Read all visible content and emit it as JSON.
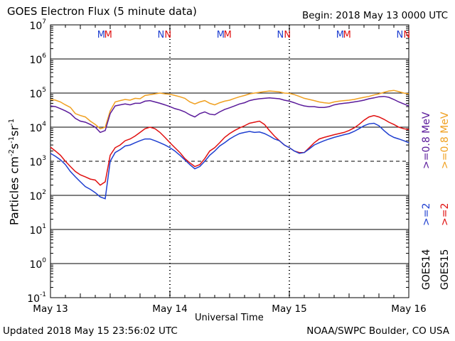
{
  "header": {
    "title": "GOES Electron Flux (5 minute data)",
    "begin": "Begin: 2018 May 13 0000 UTC"
  },
  "footer": {
    "updated": "Updated 2018 May 15 23:56:02 UTC",
    "credit": "NOAA/SWPC Boulder, CO USA"
  },
  "colors": {
    "goes14_2mev": "#1f3fd0",
    "goes15_2mev": "#e01010",
    "goes14_08mev": "#5a1a9a",
    "goes15_08mev": "#f0a020",
    "midnight_M": [
      "#1f3fd0",
      "#e01010"
    ],
    "noon_N": [
      "#1f3fd0",
      "#e01010"
    ]
  },
  "chart_data": {
    "type": "line",
    "title": "GOES Electron Flux (5 minute data)",
    "xlabel": "Universal Time",
    "ylabel_base": "Particles cm",
    "ylabel_exp1": "-2",
    "ylabel_mid1": "s",
    "ylabel_exp2": "-1",
    "ylabel_mid2": "sr",
    "ylabel_exp3": "-1",
    "yscale": "log",
    "ylim": [
      0.1,
      10000000
    ],
    "xlim": [
      0,
      72
    ],
    "x_unit": "hours since 2018 May 13 0000 UTC",
    "x_ticks": [
      {
        "x": 0,
        "label": "May 13"
      },
      {
        "x": 24,
        "label": "May 14"
      },
      {
        "x": 48,
        "label": "May 15"
      },
      {
        "x": 72,
        "label": "May 16"
      }
    ],
    "y_ticks": [
      {
        "value": 0.1,
        "base": "10",
        "exp": "-1"
      },
      {
        "value": 1,
        "base": "10",
        "exp": "0"
      },
      {
        "value": 10,
        "base": "10",
        "exp": "1"
      },
      {
        "value": 100,
        "base": "10",
        "exp": "2"
      },
      {
        "value": 1000,
        "base": "10",
        "exp": "3"
      },
      {
        "value": 10000,
        "base": "10",
        "exp": "4"
      },
      {
        "value": 100000,
        "base": "10",
        "exp": "5"
      },
      {
        "value": 1000000,
        "base": "10",
        "exp": "6"
      },
      {
        "value": 10000000,
        "base": "10",
        "exp": "7"
      }
    ],
    "threshold_line": 1000,
    "midnight_markers": [
      {
        "x": 10.2,
        "label": "M",
        "color": "#1f3fd0"
      },
      {
        "x": 11.6,
        "label": "M",
        "color": "#e01010"
      },
      {
        "x": 34.2,
        "label": "M",
        "color": "#1f3fd0"
      },
      {
        "x": 35.6,
        "label": "M",
        "color": "#e01010"
      },
      {
        "x": 58.2,
        "label": "M",
        "color": "#1f3fd0"
      },
      {
        "x": 59.6,
        "label": "M",
        "color": "#e01010"
      }
    ],
    "noon_markers": [
      {
        "x": 22.2,
        "label": "N",
        "color": "#1f3fd0"
      },
      {
        "x": 23.6,
        "label": "N",
        "color": "#e01010"
      },
      {
        "x": 46.2,
        "label": "N",
        "color": "#1f3fd0"
      },
      {
        "x": 47.6,
        "label": "N",
        "color": "#e01010"
      },
      {
        "x": 70.2,
        "label": "N",
        "color": "#1f3fd0"
      },
      {
        "x": 71.6,
        "label": "N",
        "color": "#e01010"
      }
    ],
    "legend": {
      "placement": "right",
      "groups": [
        {
          "label": "GOES14",
          "items": [
            {
              "label": ">=2",
              "color": "#1f3fd0"
            },
            {
              "label": ">=0.8 MeV",
              "color": "#5a1a9a"
            }
          ]
        },
        {
          "label": "GOES15",
          "items": [
            {
              "label": ">=2",
              "color": "#e01010"
            },
            {
              "label": ">=0.8 MeV",
              "color": "#f0a020"
            }
          ]
        }
      ]
    },
    "series": [
      {
        "name": "GOES15 >=0.8 MeV",
        "color": "#f0a020",
        "x": [
          0,
          1,
          2,
          3,
          4,
          5,
          6,
          7,
          8,
          9,
          10,
          11,
          12,
          13,
          14,
          15,
          16,
          17,
          18,
          19,
          20,
          21,
          22,
          23,
          24,
          25,
          26,
          27,
          28,
          29,
          30,
          31,
          32,
          33,
          34,
          35,
          36,
          37,
          38,
          39,
          40,
          41,
          42,
          43,
          44,
          45,
          46,
          47,
          48,
          49,
          50,
          51,
          52,
          53,
          54,
          55,
          56,
          57,
          58,
          59,
          60,
          61,
          62,
          63,
          64,
          65,
          66,
          67,
          68,
          69,
          70,
          71,
          72
        ],
        "values": [
          65000,
          62000,
          55000,
          45000,
          38000,
          25000,
          22000,
          20000,
          15000,
          12000,
          9000,
          10000,
          30000,
          55000,
          60000,
          65000,
          62000,
          70000,
          68000,
          85000,
          90000,
          95000,
          100000,
          95000,
          92000,
          85000,
          78000,
          70000,
          55000,
          48000,
          55000,
          60000,
          50000,
          45000,
          52000,
          58000,
          62000,
          70000,
          78000,
          85000,
          95000,
          100000,
          105000,
          110000,
          115000,
          112000,
          108000,
          100000,
          98000,
          90000,
          80000,
          70000,
          65000,
          60000,
          55000,
          52000,
          50000,
          55000,
          58000,
          60000,
          62000,
          65000,
          70000,
          75000,
          80000,
          88000,
          95000,
          105000,
          115000,
          120000,
          110000,
          100000,
          95000
        ]
      },
      {
        "name": "GOES14 >=0.8 MeV",
        "color": "#5a1a9a",
        "x": [
          0,
          1,
          2,
          3,
          4,
          5,
          6,
          7,
          8,
          9,
          10,
          11,
          12,
          13,
          14,
          15,
          16,
          17,
          18,
          19,
          20,
          21,
          22,
          23,
          24,
          25,
          26,
          27,
          28,
          29,
          30,
          31,
          32,
          33,
          34,
          35,
          36,
          37,
          38,
          39,
          40,
          41,
          42,
          43,
          44,
          45,
          46,
          47,
          48,
          49,
          50,
          51,
          52,
          53,
          54,
          55,
          56,
          57,
          58,
          59,
          60,
          61,
          62,
          63,
          64,
          65,
          66,
          67,
          68,
          69,
          70,
          71,
          72
        ],
        "values": [
          42000,
          40000,
          35000,
          30000,
          25000,
          18000,
          15000,
          14000,
          12000,
          10000,
          7000,
          8000,
          25000,
          42000,
          45000,
          48000,
          45000,
          50000,
          50000,
          58000,
          60000,
          55000,
          50000,
          45000,
          40000,
          35000,
          32000,
          28000,
          23000,
          20000,
          25000,
          28000,
          24000,
          23000,
          28000,
          33000,
          37000,
          42000,
          48000,
          52000,
          60000,
          65000,
          68000,
          70000,
          72000,
          70000,
          68000,
          62000,
          58000,
          52000,
          46000,
          42000,
          40000,
          40000,
          38000,
          38000,
          40000,
          45000,
          48000,
          50000,
          52000,
          55000,
          58000,
          62000,
          68000,
          72000,
          78000,
          80000,
          75000,
          65000,
          55000,
          48000,
          42000
        ]
      },
      {
        "name": "GOES15 >=2 MeV",
        "color": "#e01010",
        "x": [
          0,
          1,
          2,
          3,
          4,
          5,
          6,
          7,
          8,
          9,
          10,
          11,
          12,
          13,
          14,
          15,
          16,
          17,
          18,
          19,
          20,
          21,
          22,
          23,
          24,
          25,
          26,
          27,
          28,
          29,
          30,
          31,
          32,
          33,
          34,
          35,
          36,
          37,
          38,
          39,
          40,
          41,
          42,
          43,
          44,
          45,
          46,
          47,
          48,
          49,
          50,
          51,
          52,
          53,
          54,
          55,
          56,
          57,
          58,
          59,
          60,
          61,
          62,
          63,
          64,
          65,
          66,
          67,
          68,
          69,
          70,
          71,
          72
        ],
        "values": [
          2600,
          2000,
          1500,
          1000,
          700,
          500,
          400,
          350,
          300,
          280,
          200,
          250,
          1500,
          2500,
          3000,
          4000,
          4500,
          5500,
          7000,
          9000,
          10000,
          9000,
          7000,
          5000,
          3500,
          2500,
          1800,
          1200,
          900,
          700,
          800,
          1200,
          2000,
          2500,
          3500,
          5000,
          6500,
          8000,
          9500,
          11000,
          13000,
          14000,
          15000,
          12000,
          8000,
          5500,
          4000,
          3000,
          2500,
          2000,
          1800,
          1800,
          2500,
          3500,
          4500,
          5000,
          5500,
          6000,
          6500,
          7000,
          8000,
          9500,
          12000,
          16000,
          20000,
          22000,
          20000,
          17000,
          14000,
          12000,
          10000,
          9000,
          8500
        ]
      },
      {
        "name": "GOES14 >=2 MeV",
        "color": "#1f3fd0",
        "x": [
          0,
          1,
          2,
          3,
          4,
          5,
          6,
          7,
          8,
          9,
          10,
          11,
          12,
          13,
          14,
          15,
          16,
          17,
          18,
          19,
          20,
          21,
          22,
          23,
          24,
          25,
          26,
          27,
          28,
          29,
          30,
          31,
          32,
          33,
          34,
          35,
          36,
          37,
          38,
          39,
          40,
          41,
          42,
          43,
          44,
          45,
          46,
          47,
          48,
          49,
          50,
          51,
          52,
          53,
          54,
          55,
          56,
          57,
          58,
          59,
          60,
          61,
          62,
          63,
          64,
          65,
          66,
          67,
          68,
          69,
          70,
          71,
          72
        ],
        "values": [
          1700,
          1400,
          1100,
          800,
          500,
          350,
          250,
          180,
          150,
          120,
          90,
          80,
          1000,
          1800,
          2200,
          2800,
          3000,
          3500,
          4000,
          4500,
          4500,
          4000,
          3500,
          3000,
          2500,
          2000,
          1500,
          1100,
          800,
          600,
          700,
          1000,
          1500,
          2000,
          2800,
          3500,
          4500,
          5500,
          6500,
          7000,
          7500,
          7000,
          7200,
          6500,
          5500,
          4500,
          4000,
          3000,
          2500,
          2000,
          1700,
          1800,
          2300,
          3000,
          3500,
          4000,
          4500,
          5000,
          5500,
          6000,
          6500,
          7500,
          9000,
          11000,
          12500,
          13000,
          11000,
          8000,
          6000,
          5000,
          4500,
          4000,
          3500
        ]
      }
    ]
  }
}
